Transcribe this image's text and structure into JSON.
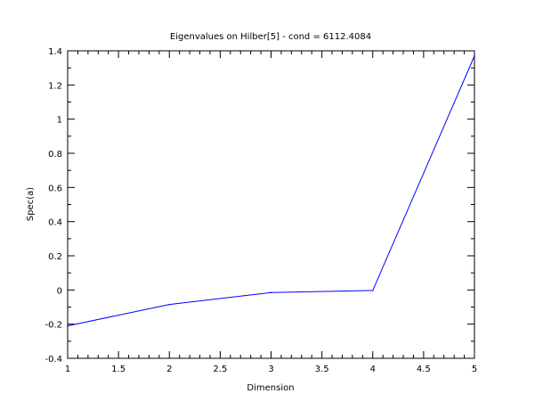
{
  "chart_data": {
    "type": "line",
    "title": "Eigenvalues on Hilber[5] - cond = 6112.4084",
    "xlabel": "Dimension",
    "ylabel": "Spec(a)",
    "xlim": [
      1,
      5
    ],
    "ylim": [
      -0.4,
      1.4
    ],
    "x_ticks": [
      1,
      1.5,
      2,
      2.5,
      3,
      3.5,
      4,
      4.5,
      5
    ],
    "x_tick_labels": [
      "1",
      "1.5",
      "2",
      "2.5",
      "3",
      "3.5",
      "4",
      "4.5",
      "5"
    ],
    "y_ticks": [
      -0.4,
      -0.2,
      0,
      0.2,
      0.4,
      0.6,
      0.8,
      1,
      1.2,
      1.4
    ],
    "y_tick_labels": [
      "-0.4",
      "-0.2",
      "0",
      "0.2",
      "0.4",
      "0.6",
      "0.8",
      "1",
      "1.2",
      "1.4"
    ],
    "grid": false,
    "series": [
      {
        "color": "#0000ff",
        "x": [
          1,
          2,
          3,
          4,
          5
        ],
        "y": [
          -0.21,
          -0.085,
          -0.015,
          -0.003,
          1.37
        ]
      }
    ]
  }
}
